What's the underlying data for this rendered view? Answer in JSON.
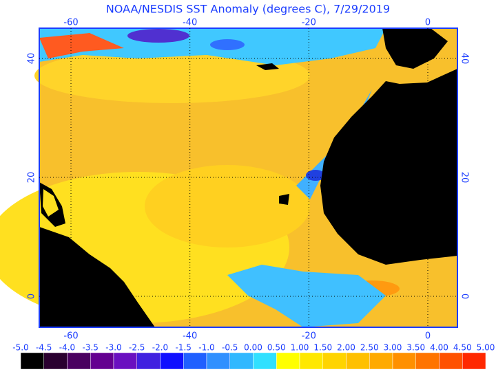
{
  "title": "NOAA/NESDIS SST Anomaly (degrees C), 7/29/2019",
  "map": {
    "lon_ticks": [
      -60,
      -40,
      -20,
      0
    ],
    "lat_ticks": [
      40,
      20,
      0
    ]
  },
  "colorbar": {
    "labels": [
      "-5.0",
      "-4.5",
      "-4.0",
      "-3.5",
      "-3.0",
      "-2.5",
      "-2.0",
      "-1.5",
      "-1.0",
      "-0.5",
      "0.00",
      "0.50",
      "1.00",
      "1.50",
      "2.00",
      "2.50",
      "3.00",
      "3.50",
      "4.00",
      "4.50",
      "5.00"
    ],
    "colors": [
      "#000000",
      "#2a0030",
      "#4a0060",
      "#640090",
      "#6a10c0",
      "#4020e0",
      "#1010ff",
      "#2060ff",
      "#3090ff",
      "#30b8ff",
      "#30e0ff",
      "#ffff00",
      "#ffe800",
      "#ffd400",
      "#ffc000",
      "#ffaa00",
      "#ff9000",
      "#ff7400",
      "#ff5200",
      "#ff2800"
    ]
  }
}
